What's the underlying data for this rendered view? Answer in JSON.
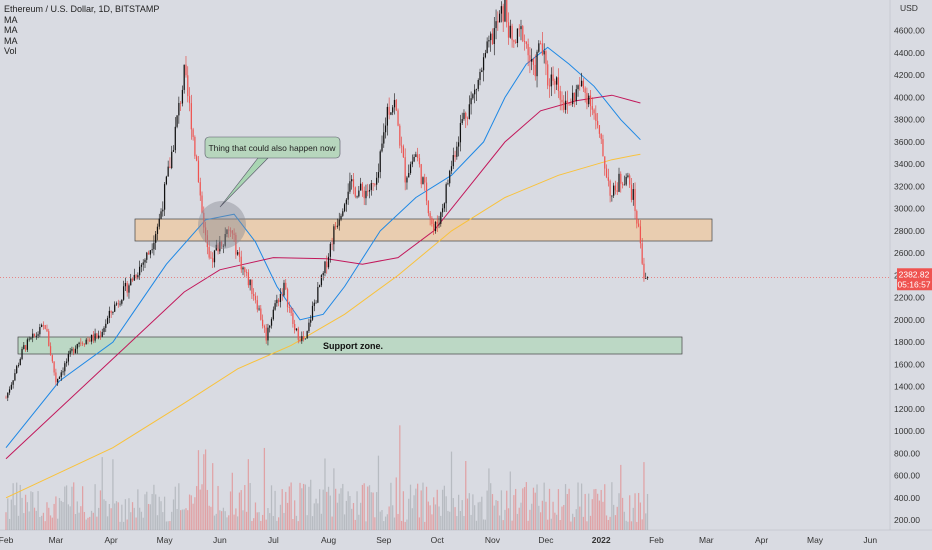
{
  "chart_data": {
    "type": "candlestick",
    "title": "Ethereum / U.S. Dollar, 1D, BITSTAMP",
    "legend": [
      "MA",
      "MA",
      "MA",
      "Vol"
    ],
    "currency_label": "USD",
    "ylim": [
      100,
      4900
    ],
    "y_ticks": [
      200,
      400,
      600,
      800,
      1000,
      1200,
      1400,
      1600,
      1800,
      2000,
      2200,
      2400,
      2600,
      2800,
      3000,
      3200,
      3400,
      3600,
      3800,
      4000,
      4200,
      4400,
      4600
    ],
    "x_ticks": [
      {
        "label": "Feb",
        "day": 0
      },
      {
        "label": "Mar",
        "day": 28
      },
      {
        "label": "Apr",
        "day": 59
      },
      {
        "label": "May",
        "day": 89
      },
      {
        "label": "Jun",
        "day": 120
      },
      {
        "label": "Jul",
        "day": 150
      },
      {
        "label": "Aug",
        "day": 181
      },
      {
        "label": "Sep",
        "day": 212
      },
      {
        "label": "Oct",
        "day": 242
      },
      {
        "label": "Nov",
        "day": 273
      },
      {
        "label": "Dec",
        "day": 303
      },
      {
        "label": "2022",
        "day": 334
      },
      {
        "label": "Feb",
        "day": 365
      },
      {
        "label": "Mar",
        "day": 393
      },
      {
        "label": "Apr",
        "day": 424
      },
      {
        "label": "May",
        "day": 454
      },
      {
        "label": "Jun",
        "day": 485
      }
    ],
    "current_price": "2382.82",
    "countdown": "05:16:57",
    "price_anchors": [
      [
        0,
        1300
      ],
      [
        10,
        1750
      ],
      [
        22,
        1950
      ],
      [
        28,
        1450
      ],
      [
        40,
        1800
      ],
      [
        52,
        1850
      ],
      [
        60,
        2100
      ],
      [
        72,
        2400
      ],
      [
        80,
        2600
      ],
      [
        86,
        2900
      ],
      [
        92,
        3400
      ],
      [
        100,
        4200
      ],
      [
        104,
        3800
      ],
      [
        110,
        3000
      ],
      [
        114,
        2500
      ],
      [
        120,
        2700
      ],
      [
        126,
        2800
      ],
      [
        132,
        2500
      ],
      [
        140,
        2200
      ],
      [
        146,
        1850
      ],
      [
        150,
        2100
      ],
      [
        156,
        2300
      ],
      [
        162,
        1900
      ],
      [
        168,
        1800
      ],
      [
        172,
        2100
      ],
      [
        178,
        2400
      ],
      [
        184,
        2800
      ],
      [
        192,
        3200
      ],
      [
        200,
        3150
      ],
      [
        208,
        3200
      ],
      [
        214,
        3900
      ],
      [
        218,
        3950
      ],
      [
        224,
        3300
      ],
      [
        230,
        3500
      ],
      [
        236,
        3100
      ],
      [
        240,
        2800
      ],
      [
        244,
        2950
      ],
      [
        250,
        3400
      ],
      [
        256,
        3800
      ],
      [
        262,
        4000
      ],
      [
        268,
        4300
      ],
      [
        274,
        4600
      ],
      [
        280,
        4800
      ],
      [
        284,
        4450
      ],
      [
        290,
        4600
      ],
      [
        296,
        4200
      ],
      [
        300,
        4500
      ],
      [
        304,
        4150
      ],
      [
        308,
        4200
      ],
      [
        314,
        3900
      ],
      [
        318,
        4000
      ],
      [
        322,
        4100
      ],
      [
        328,
        4000
      ],
      [
        332,
        3700
      ],
      [
        336,
        3400
      ],
      [
        340,
        3100
      ],
      [
        344,
        3250
      ],
      [
        348,
        3300
      ],
      [
        352,
        3100
      ],
      [
        356,
        2700
      ],
      [
        358,
        2400
      ],
      [
        360,
        2380
      ]
    ],
    "series": [
      {
        "name": "MA",
        "color": "#1e88e5",
        "points": [
          [
            0,
            850
          ],
          [
            30,
            1450
          ],
          [
            60,
            1800
          ],
          [
            90,
            2500
          ],
          [
            112,
            2900
          ],
          [
            128,
            2950
          ],
          [
            140,
            2700
          ],
          [
            152,
            2300
          ],
          [
            165,
            2000
          ],
          [
            178,
            2050
          ],
          [
            190,
            2300
          ],
          [
            210,
            2800
          ],
          [
            230,
            3100
          ],
          [
            250,
            3300
          ],
          [
            268,
            3600
          ],
          [
            280,
            4000
          ],
          [
            292,
            4300
          ],
          [
            304,
            4450
          ],
          [
            316,
            4300
          ],
          [
            330,
            4100
          ],
          [
            345,
            3800
          ],
          [
            356,
            3620
          ]
        ]
      },
      {
        "name": "MA",
        "color": "#c2185b",
        "points": [
          [
            0,
            750
          ],
          [
            60,
            1650
          ],
          [
            100,
            2250
          ],
          [
            120,
            2450
          ],
          [
            150,
            2560
          ],
          [
            180,
            2550
          ],
          [
            200,
            2500
          ],
          [
            220,
            2560
          ],
          [
            240,
            2800
          ],
          [
            260,
            3200
          ],
          [
            280,
            3600
          ],
          [
            300,
            3880
          ],
          [
            320,
            3970
          ],
          [
            340,
            4020
          ],
          [
            356,
            3950
          ]
        ]
      },
      {
        "name": "MA",
        "color": "#f9c23c",
        "points": [
          [
            0,
            400
          ],
          [
            60,
            850
          ],
          [
            100,
            1250
          ],
          [
            130,
            1560
          ],
          [
            160,
            1770
          ],
          [
            190,
            2050
          ],
          [
            220,
            2400
          ],
          [
            250,
            2800
          ],
          [
            280,
            3100
          ],
          [
            310,
            3300
          ],
          [
            340,
            3440
          ],
          [
            356,
            3490
          ]
        ]
      }
    ]
  },
  "annotations": {
    "callout_text": "Thing that could also happen now",
    "support_label": "Support zone."
  }
}
